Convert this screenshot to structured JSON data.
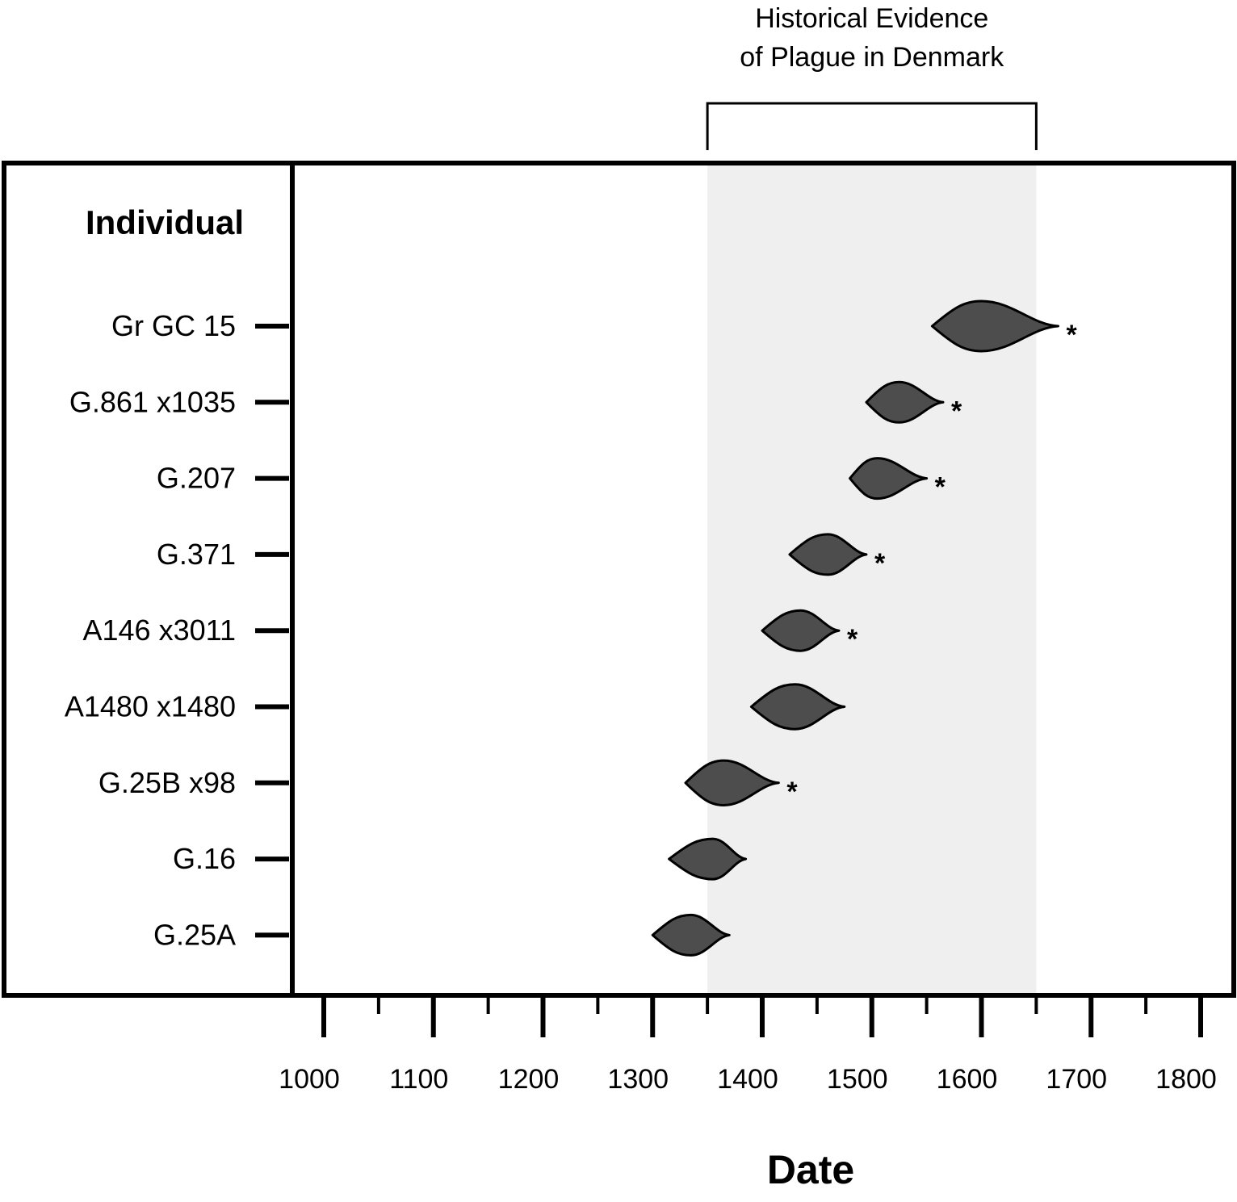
{
  "chart_data": {
    "type": "violin",
    "header": "Individual",
    "xlabel": "Date",
    "xlim": [
      1000,
      1800
    ],
    "x_ticks": [
      1000,
      1100,
      1200,
      1300,
      1400,
      1500,
      1600,
      1700,
      1800
    ],
    "shaded_period": {
      "label_line1": "Historical Evidence",
      "label_line2": "of Plague in Denmark",
      "start": 1350,
      "end": 1650,
      "color": "#efefef"
    },
    "distribution_color": "#4d4d4d",
    "significance_marker": "*",
    "individuals": [
      {
        "name": "Gr GC 15",
        "start": 1555,
        "peak": 1600,
        "end": 1670,
        "significant": true
      },
      {
        "name": "G.861 x1035",
        "start": 1495,
        "peak": 1525,
        "end": 1565,
        "significant": true
      },
      {
        "name": "G.207",
        "start": 1480,
        "peak": 1505,
        "end": 1550,
        "significant": true
      },
      {
        "name": "G.371",
        "start": 1425,
        "peak": 1460,
        "end": 1495,
        "significant": true
      },
      {
        "name": "A146 x3011",
        "start": 1400,
        "peak": 1435,
        "end": 1470,
        "significant": true
      },
      {
        "name": "A1480 x1480",
        "start": 1390,
        "peak": 1430,
        "end": 1475,
        "significant": false
      },
      {
        "name": "G.25B x98",
        "start": 1330,
        "peak": 1365,
        "end": 1415,
        "significant": true
      },
      {
        "name": "G.16",
        "start": 1315,
        "peak": 1355,
        "end": 1385,
        "significant": false
      },
      {
        "name": "G.25A",
        "start": 1300,
        "peak": 1335,
        "end": 1370,
        "significant": false
      }
    ]
  }
}
